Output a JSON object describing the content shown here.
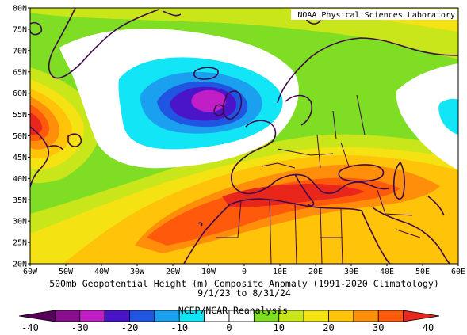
{
  "credit": "NOAA Physical Sciences Laboratory",
  "title_line1": "500mb Geopotential Height (m) Composite Anomaly (1991-2020 Climatology)",
  "title_line2": "9/1/23  to 8/31/24",
  "source": "NCEP/NCAR Reanalysis",
  "lat_labels": [
    "80N",
    "75N",
    "70N",
    "65N",
    "60N",
    "55N",
    "50N",
    "45N",
    "40N",
    "35N",
    "30N",
    "25N",
    "20N"
  ],
  "lon_labels": [
    "60W",
    "50W",
    "40W",
    "30W",
    "20W",
    "10W",
    "0",
    "10E",
    "20E",
    "30E",
    "40E",
    "50E",
    "60E"
  ],
  "colorbar": {
    "ticks": [
      "-40",
      "-30",
      "-20",
      "-10",
      "0",
      "10",
      "20",
      "30",
      "40"
    ],
    "range": [
      -40,
      40
    ],
    "colors": [
      "#58005a",
      "#8a0f8e",
      "#c21ec6",
      "#4a15c8",
      "#1f55e0",
      "#1aa0ee",
      "#12e6f6",
      "#ffffff",
      "#ffffff",
      "#7fdd24",
      "#c9e61a",
      "#f4e212",
      "#ffc30a",
      "#ff8f0a",
      "#ff5a0c",
      "#e8261c"
    ]
  },
  "map_extent": {
    "lon": [
      -60,
      60
    ],
    "lat": [
      20,
      80
    ]
  }
}
